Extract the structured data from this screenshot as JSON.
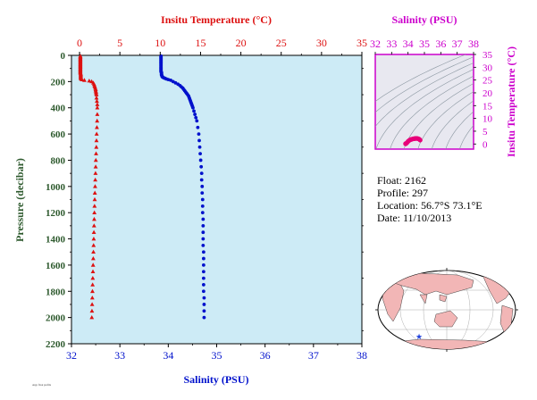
{
  "colors": {
    "temperature": "#dd1111",
    "salinity": "#0011cc",
    "pressure_axis": "#2e5a2e",
    "ts_axis": "#cc00cc",
    "plot_bg": "#cdebf6",
    "land": "#f2b6b6",
    "ocean": "#ffffff",
    "float_marker": "#2244dd"
  },
  "chart_data": [
    {
      "type": "scatter",
      "title": "",
      "x_top_label": "Insitu Temperature (°C)",
      "x_top_ticks": [
        "0",
        "5",
        "10",
        "15",
        "20",
        "25",
        "30",
        "35"
      ],
      "x_top_lim": [
        -1,
        35
      ],
      "x_bottom_label": "Salinity (PSU)",
      "x_bottom_ticks": [
        "32",
        "33",
        "34",
        "35",
        "36",
        "37",
        "38"
      ],
      "x_bottom_lim": [
        32,
        38
      ],
      "y_label": "Pressure (decibar)",
      "y_ticks": [
        "0",
        "200",
        "400",
        "600",
        "800",
        "1000",
        "1200",
        "1400",
        "1600",
        "1800",
        "2000",
        "2200"
      ],
      "y_lim": [
        0,
        2200
      ],
      "y_inverted": true,
      "series": [
        {
          "name": "",
          "marker": "triangle",
          "axis": "top",
          "pressure": [
            5,
            10,
            15,
            20,
            25,
            30,
            35,
            40,
            45,
            50,
            55,
            60,
            65,
            70,
            75,
            80,
            85,
            90,
            95,
            100,
            105,
            110,
            115,
            120,
            125,
            130,
            135,
            140,
            145,
            150,
            155,
            160,
            165,
            170,
            175,
            180,
            185,
            190,
            195,
            200,
            210,
            220,
            230,
            240,
            250,
            260,
            270,
            280,
            290,
            300,
            325,
            350,
            375,
            400,
            450,
            500,
            550,
            600,
            650,
            700,
            750,
            800,
            850,
            900,
            950,
            1000,
            1050,
            1100,
            1150,
            1200,
            1250,
            1300,
            1350,
            1400,
            1450,
            1500,
            1550,
            1600,
            1650,
            1700,
            1750,
            1800,
            1850,
            1900,
            1950,
            2000
          ],
          "values": [
            0.1,
            0.1,
            0.1,
            0.1,
            0.1,
            0.1,
            0.1,
            0.1,
            0.1,
            0.1,
            0.1,
            0.1,
            0.1,
            0.1,
            0.1,
            0.1,
            0.1,
            0.1,
            0.1,
            0.1,
            0.1,
            0.1,
            0.1,
            0.1,
            0.1,
            0.1,
            0.1,
            0.15,
            0.15,
            0.15,
            0.15,
            0.15,
            0.15,
            0.15,
            0.15,
            0.2,
            0.3,
            0.6,
            1.2,
            1.5,
            1.7,
            1.8,
            1.85,
            1.9,
            1.95,
            2.0,
            2.0,
            2.05,
            2.05,
            2.1,
            2.1,
            2.15,
            2.2,
            2.2,
            2.2,
            2.18,
            2.15,
            2.12,
            2.1,
            2.08,
            2.05,
            2.02,
            2.0,
            1.98,
            1.95,
            1.93,
            1.9,
            1.88,
            1.86,
            1.84,
            1.82,
            1.8,
            1.78,
            1.76,
            1.74,
            1.72,
            1.7,
            1.68,
            1.66,
            1.64,
            1.62,
            1.6,
            1.58,
            1.56,
            1.54,
            1.52
          ]
        },
        {
          "name": "",
          "marker": "circle",
          "axis": "bottom",
          "pressure": [
            5,
            10,
            15,
            20,
            25,
            30,
            35,
            40,
            45,
            50,
            55,
            60,
            65,
            70,
            75,
            80,
            85,
            90,
            95,
            100,
            105,
            110,
            115,
            120,
            125,
            130,
            135,
            140,
            145,
            150,
            155,
            160,
            165,
            170,
            175,
            180,
            185,
            190,
            200,
            210,
            220,
            230,
            240,
            250,
            260,
            270,
            280,
            290,
            300,
            310,
            320,
            330,
            340,
            350,
            360,
            370,
            380,
            390,
            400,
            425,
            450,
            475,
            500,
            550,
            600,
            650,
            700,
            750,
            800,
            850,
            900,
            950,
            1000,
            1050,
            1100,
            1150,
            1200,
            1250,
            1300,
            1350,
            1400,
            1450,
            1500,
            1550,
            1600,
            1650,
            1700,
            1750,
            1800,
            1850,
            1900,
            1950,
            2000
          ],
          "values": [
            33.85,
            33.85,
            33.85,
            33.85,
            33.85,
            33.85,
            33.85,
            33.85,
            33.85,
            33.85,
            33.85,
            33.85,
            33.85,
            33.85,
            33.85,
            33.85,
            33.85,
            33.85,
            33.85,
            33.85,
            33.85,
            33.85,
            33.85,
            33.85,
            33.85,
            33.86,
            33.86,
            33.86,
            33.86,
            33.86,
            33.87,
            33.87,
            33.88,
            33.9,
            33.93,
            33.96,
            34.0,
            34.05,
            34.1,
            34.15,
            34.2,
            34.24,
            34.27,
            34.3,
            34.32,
            34.34,
            34.36,
            34.38,
            34.4,
            34.42,
            34.43,
            34.44,
            34.45,
            34.46,
            34.47,
            34.48,
            34.49,
            34.5,
            34.51,
            34.53,
            34.55,
            34.57,
            34.59,
            34.61,
            34.63,
            34.64,
            34.65,
            34.66,
            34.67,
            34.68,
            34.69,
            34.69,
            34.7,
            34.7,
            34.71,
            34.71,
            34.71,
            34.72,
            34.72,
            34.72,
            34.72,
            34.72,
            34.73,
            34.73,
            34.73,
            34.73,
            34.73,
            34.73,
            34.73,
            34.74,
            34.74,
            34.74,
            34.74
          ]
        }
      ]
    },
    {
      "type": "scatter",
      "title": "",
      "x_label": "Salinity (PSU)",
      "x_ticks": [
        "32",
        "33",
        "34",
        "35",
        "36",
        "37",
        "38"
      ],
      "x_lim": [
        32,
        38
      ],
      "y_label": "Insitu Temperature (°C)",
      "y_ticks": [
        "0",
        "5",
        "10",
        "15",
        "20",
        "25",
        "30",
        "35"
      ],
      "y_lim": [
        -2,
        35
      ],
      "series": [
        {
          "name": "",
          "salinity": [
            33.85,
            33.85,
            33.86,
            33.87,
            33.9,
            33.95,
            34.0,
            34.05,
            34.1,
            34.15,
            34.2,
            34.25,
            34.3,
            34.35,
            34.4,
            34.45,
            34.5,
            34.55,
            34.6,
            34.65,
            34.7,
            34.74
          ],
          "temperature": [
            0.1,
            0.1,
            0.15,
            0.15,
            0.3,
            0.6,
            1.0,
            1.3,
            1.5,
            1.7,
            1.8,
            1.9,
            2.0,
            2.05,
            2.1,
            2.15,
            2.2,
            2.15,
            2.1,
            2.0,
            1.8,
            1.5
          ]
        }
      ]
    }
  ],
  "info": {
    "float": "Float:  2162",
    "profile": "Profile:  297",
    "location": "Location:  56.7°S  73.1°E",
    "date": "Date:  11/10/2013"
  },
  "map": {
    "float_marker": "star"
  },
  "footer_note": "Argo float profile"
}
